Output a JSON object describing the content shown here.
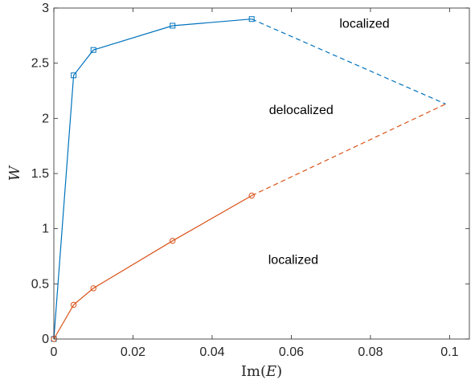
{
  "chart_data": {
    "type": "line",
    "xlabel": {
      "prefix": "Im(",
      "var": "E",
      "suffix": ")"
    },
    "ylabel": "W",
    "xlim": [
      0,
      0.105
    ],
    "ylim": [
      0,
      3
    ],
    "xticks": [
      0,
      0.02,
      0.04,
      0.06,
      0.08,
      0.1
    ],
    "xtick_labels": [
      "0",
      "0.02",
      "0.04",
      "0.06",
      "0.08",
      "0.1"
    ],
    "yticks": [
      0,
      0.5,
      1,
      1.5,
      2,
      2.5,
      3
    ],
    "ytick_labels": [
      "0",
      "0.5",
      "1",
      "1.5",
      "2",
      "2.5",
      "3"
    ],
    "grid": false,
    "series": [
      {
        "color": "#0072BD",
        "marker": "square",
        "x": [
          0,
          0.005,
          0.01,
          0.03,
          0.05
        ],
        "y": [
          0,
          2.39,
          2.62,
          2.84,
          2.9
        ],
        "extrapolation": {
          "x": [
            0.05,
            0.099
          ],
          "y": [
            2.9,
            2.13
          ],
          "style": "dashed"
        }
      },
      {
        "color": "#D95319",
        "marker": "circle",
        "x": [
          0,
          0.005,
          0.01,
          0.03,
          0.05
        ],
        "y": [
          0,
          0.31,
          0.46,
          0.89,
          1.3
        ],
        "extrapolation": {
          "x": [
            0.05,
            0.099
          ],
          "y": [
            1.3,
            2.13
          ],
          "style": "dashed"
        }
      }
    ],
    "annotations": [
      {
        "text": "localized",
        "x": 0.0785,
        "y": 2.82
      },
      {
        "text": "delocalized",
        "x": 0.0625,
        "y": 2.04
      },
      {
        "text": "localized",
        "x": 0.0605,
        "y": 0.68
      }
    ]
  }
}
